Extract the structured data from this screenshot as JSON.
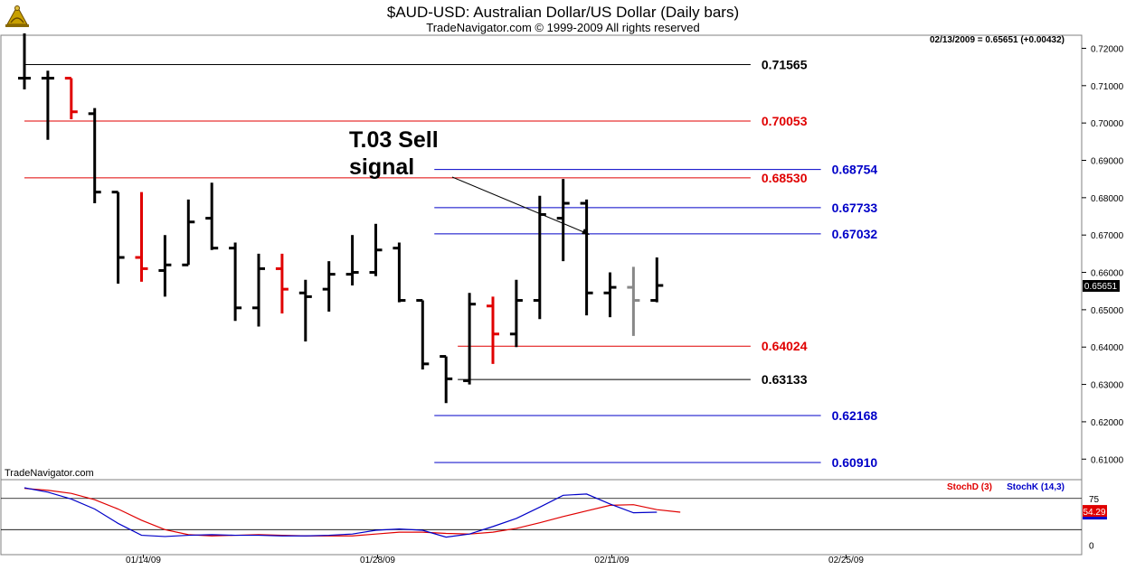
{
  "header": {
    "title": "$AUD-USD:  Australian Dollar/US Dollar  (Daily bars)",
    "subtitle": "TradeNavigator.com © 1999-2009 All rights reserved"
  },
  "watermark": "TradeNavigator.com",
  "readout": "02/13/2009 = 0.65651 (+0.00432)",
  "annotation": "T.03 Sell\nsignal",
  "price_label": "0.65651",
  "logo_icon": "sextant-icon",
  "colors": {
    "bar_black": "#000000",
    "bar_red": "#e00000",
    "bar_gray": "#888888",
    "line_black": "#000000",
    "line_red": "#e00000",
    "line_blue": "#0000c8",
    "stoch_d": "#e00000",
    "stoch_k": "#0000c8",
    "frame": "#808080"
  },
  "chart_data": [
    {
      "type": "bar",
      "subtype": "ohlc",
      "title": "$AUD-USD:  Australian Dollar/US Dollar  (Daily bars)",
      "ylim": [
        0.6045,
        0.7235
      ],
      "yticks": [
        "0.72000",
        "0.71000",
        "0.70000",
        "0.69000",
        "0.68000",
        "0.67000",
        "0.66000",
        "0.65000",
        "0.64000",
        "0.63000",
        "0.62000",
        "0.61000"
      ],
      "xticks": [
        {
          "label": "01/14/09",
          "index": 5
        },
        {
          "label": "01/28/09",
          "index": 15
        },
        {
          "label": "02/11/09",
          "index": 25
        },
        {
          "label": "02/25/09",
          "index": 35
        }
      ],
      "bars": [
        {
          "o": 0.712,
          "h": 0.724,
          "l": 0.709,
          "c": 0.712,
          "color": "black"
        },
        {
          "o": 0.712,
          "h": 0.714,
          "l": 0.6955,
          "c": 0.712,
          "color": "black"
        },
        {
          "o": 0.712,
          "h": 0.712,
          "l": 0.701,
          "c": 0.703,
          "color": "red"
        },
        {
          "o": 0.7025,
          "h": 0.704,
          "l": 0.6785,
          "c": 0.6815,
          "color": "black"
        },
        {
          "o": 0.6815,
          "h": 0.6815,
          "l": 0.657,
          "c": 0.664,
          "color": "black"
        },
        {
          "o": 0.664,
          "h": 0.6815,
          "l": 0.6575,
          "c": 0.661,
          "color": "red"
        },
        {
          "o": 0.6605,
          "h": 0.67,
          "l": 0.6535,
          "c": 0.662,
          "color": "black"
        },
        {
          "o": 0.662,
          "h": 0.6795,
          "l": 0.662,
          "c": 0.6735,
          "color": "black"
        },
        {
          "o": 0.6745,
          "h": 0.684,
          "l": 0.666,
          "c": 0.6665,
          "color": "black"
        },
        {
          "o": 0.6665,
          "h": 0.668,
          "l": 0.647,
          "c": 0.6505,
          "color": "black"
        },
        {
          "o": 0.6505,
          "h": 0.665,
          "l": 0.6455,
          "c": 0.661,
          "color": "black"
        },
        {
          "o": 0.661,
          "h": 0.665,
          "l": 0.649,
          "c": 0.6555,
          "color": "red"
        },
        {
          "o": 0.6545,
          "h": 0.658,
          "l": 0.6415,
          "c": 0.6535,
          "color": "black"
        },
        {
          "o": 0.6555,
          "h": 0.663,
          "l": 0.6495,
          "c": 0.6595,
          "color": "black"
        },
        {
          "o": 0.6595,
          "h": 0.67,
          "l": 0.6565,
          "c": 0.66,
          "color": "black"
        },
        {
          "o": 0.66,
          "h": 0.673,
          "l": 0.659,
          "c": 0.666,
          "color": "black"
        },
        {
          "o": 0.6665,
          "h": 0.668,
          "l": 0.652,
          "c": 0.6525,
          "color": "black"
        },
        {
          "o": 0.6525,
          "h": 0.6525,
          "l": 0.634,
          "c": 0.6355,
          "color": "black"
        },
        {
          "o": 0.6375,
          "h": 0.6375,
          "l": 0.625,
          "c": 0.6315,
          "color": "black"
        },
        {
          "o": 0.631,
          "h": 0.6545,
          "l": 0.63,
          "c": 0.6515,
          "color": "black"
        },
        {
          "o": 0.651,
          "h": 0.6535,
          "l": 0.6355,
          "c": 0.6435,
          "color": "red"
        },
        {
          "o": 0.6435,
          "h": 0.658,
          "l": 0.64,
          "c": 0.6525,
          "color": "black"
        },
        {
          "o": 0.6525,
          "h": 0.6805,
          "l": 0.6475,
          "c": 0.6755,
          "color": "black"
        },
        {
          "o": 0.6745,
          "h": 0.685,
          "l": 0.663,
          "c": 0.6785,
          "color": "black"
        },
        {
          "o": 0.6785,
          "h": 0.6795,
          "l": 0.6485,
          "c": 0.6545,
          "color": "black"
        },
        {
          "o": 0.6545,
          "h": 0.66,
          "l": 0.648,
          "c": 0.656,
          "color": "black"
        },
        {
          "o": 0.656,
          "h": 0.6615,
          "l": 0.643,
          "c": 0.6525,
          "color": "gray"
        },
        {
          "o": 0.6525,
          "h": 0.664,
          "l": 0.652,
          "c": 0.6565,
          "color": "black"
        }
      ],
      "levels": [
        {
          "value": 0.71565,
          "label": "0.71565",
          "color": "black",
          "from": 0,
          "to": 31
        },
        {
          "value": 0.70053,
          "label": "0.70053",
          "color": "red",
          "from": 0,
          "to": 31
        },
        {
          "value": 0.6853,
          "label": "0.68530",
          "color": "red",
          "from": 0,
          "to": 31
        },
        {
          "value": 0.68754,
          "label": "0.68754",
          "color": "blue",
          "from": 17.5,
          "to": 34
        },
        {
          "value": 0.67733,
          "label": "0.67733",
          "color": "blue",
          "from": 17.5,
          "to": 34
        },
        {
          "value": 0.67032,
          "label": "0.67032",
          "color": "blue",
          "from": 17.5,
          "to": 34
        },
        {
          "value": 0.64024,
          "label": "0.64024",
          "color": "red",
          "from": 18.5,
          "to": 31
        },
        {
          "value": 0.63133,
          "label": "0.63133",
          "color": "black",
          "from": 18.5,
          "to": 31
        },
        {
          "value": 0.62168,
          "label": "0.62168",
          "color": "blue",
          "from": 17.5,
          "to": 34
        },
        {
          "value": 0.6091,
          "label": "0.60910",
          "color": "blue",
          "from": 17.5,
          "to": 34
        }
      ]
    },
    {
      "type": "line",
      "ylim": [
        -15,
        105
      ],
      "yticks": [
        "75",
        "0"
      ],
      "reference_lines": [
        75,
        25
      ],
      "series": [
        {
          "name": "StochD (3)",
          "color": "red",
          "values": [
            91,
            88,
            83,
            73,
            58,
            40,
            25,
            17,
            15,
            16,
            17,
            16,
            15,
            15,
            15,
            18,
            21,
            21,
            19,
            18,
            21,
            27,
            36,
            46,
            55,
            64,
            65,
            57,
            53
          ]
        },
        {
          "name": "StochK (14,3)",
          "color": "blue",
          "values": [
            92,
            85,
            74,
            58,
            35,
            16,
            14,
            16,
            17,
            16,
            16,
            15,
            15,
            16,
            18,
            24,
            26,
            24,
            13,
            18,
            30,
            43,
            61,
            80,
            82,
            66,
            52,
            53,
            null
          ]
        }
      ],
      "current": {
        "label": "54.29",
        "value": 54.29
      }
    }
  ]
}
